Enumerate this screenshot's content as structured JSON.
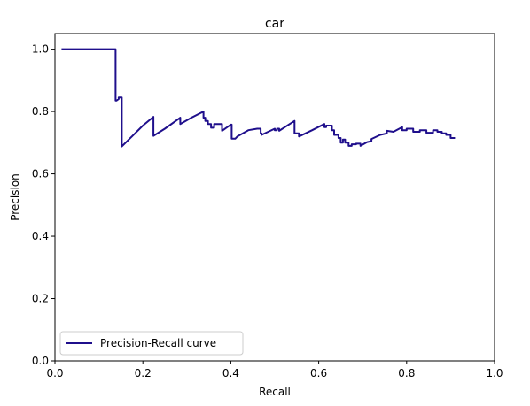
{
  "chart_data": {
    "type": "line",
    "title": "car",
    "xlabel": "Recall",
    "ylabel": "Precision",
    "xlim": [
      0.0,
      1.0
    ],
    "ylim": [
      0.0,
      1.05
    ],
    "xticks": [
      "0.0",
      "0.2",
      "0.4",
      "0.6",
      "0.8",
      "1.0"
    ],
    "yticks": [
      "0.0",
      "0.2",
      "0.4",
      "0.6",
      "0.8",
      "1.0"
    ],
    "grid": false,
    "legend_position": "lower-left",
    "series": [
      {
        "name": "Precision-Recall curve",
        "color": "#1f0f8c",
        "x": [
          0.015,
          0.138,
          0.138,
          0.14,
          0.145,
          0.145,
          0.152,
          0.152,
          0.175,
          0.2,
          0.224,
          0.224,
          0.25,
          0.285,
          0.285,
          0.31,
          0.338,
          0.338,
          0.342,
          0.342,
          0.348,
          0.348,
          0.355,
          0.355,
          0.362,
          0.362,
          0.38,
          0.38,
          0.4,
          0.402,
          0.402,
          0.41,
          0.415,
          0.415,
          0.44,
          0.46,
          0.468,
          0.468,
          0.47,
          0.47,
          0.5,
          0.5,
          0.505,
          0.505,
          0.51,
          0.51,
          0.545,
          0.545,
          0.555,
          0.555,
          0.585,
          0.613,
          0.613,
          0.617,
          0.617,
          0.63,
          0.63,
          0.635,
          0.635,
          0.645,
          0.645,
          0.65,
          0.65,
          0.655,
          0.655,
          0.66,
          0.66,
          0.668,
          0.668,
          0.675,
          0.675,
          0.685,
          0.685,
          0.695,
          0.695,
          0.71,
          0.72,
          0.72,
          0.74,
          0.755,
          0.755,
          0.77,
          0.79,
          0.79,
          0.8,
          0.8,
          0.815,
          0.815,
          0.83,
          0.83,
          0.845,
          0.845,
          0.86,
          0.86,
          0.865,
          0.87,
          0.87,
          0.88,
          0.88,
          0.89,
          0.89,
          0.9,
          0.9,
          0.91
        ],
        "y": [
          1.0,
          1.0,
          0.835,
          0.835,
          0.84,
          0.845,
          0.845,
          0.688,
          0.72,
          0.755,
          0.783,
          0.722,
          0.745,
          0.78,
          0.76,
          0.78,
          0.8,
          0.78,
          0.78,
          0.77,
          0.77,
          0.76,
          0.76,
          0.748,
          0.748,
          0.76,
          0.76,
          0.738,
          0.758,
          0.758,
          0.713,
          0.713,
          0.72,
          0.72,
          0.74,
          0.745,
          0.745,
          0.73,
          0.73,
          0.725,
          0.745,
          0.74,
          0.74,
          0.745,
          0.745,
          0.738,
          0.77,
          0.73,
          0.73,
          0.72,
          0.74,
          0.76,
          0.75,
          0.75,
          0.755,
          0.755,
          0.74,
          0.74,
          0.725,
          0.725,
          0.715,
          0.715,
          0.7,
          0.7,
          0.71,
          0.71,
          0.7,
          0.7,
          0.69,
          0.69,
          0.695,
          0.695,
          0.697,
          0.697,
          0.69,
          0.702,
          0.705,
          0.712,
          0.725,
          0.73,
          0.738,
          0.735,
          0.75,
          0.74,
          0.74,
          0.745,
          0.745,
          0.735,
          0.735,
          0.74,
          0.74,
          0.732,
          0.732,
          0.74,
          0.74,
          0.74,
          0.735,
          0.735,
          0.73,
          0.73,
          0.725,
          0.725,
          0.715,
          0.715
        ]
      }
    ]
  }
}
